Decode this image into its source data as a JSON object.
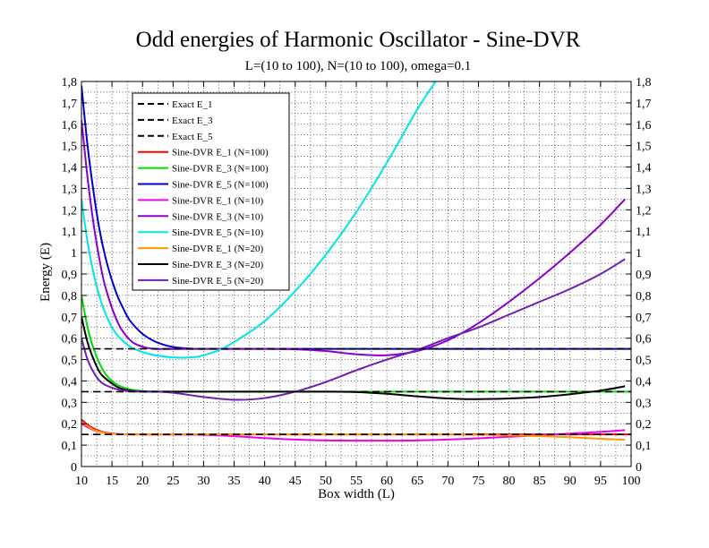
{
  "chart_data": {
    "type": "line",
    "title": "Odd energies of Harmonic Oscillator - Sine-DVR",
    "subtitle": "L=(10 to 100), N=(10 to 100), omega=0.1",
    "xlabel": "Box width (L)",
    "ylabel": "Energy (E)",
    "xlim": [
      10,
      100
    ],
    "ylim": [
      0,
      1.8
    ],
    "x_ticks": [
      10,
      15,
      20,
      25,
      30,
      35,
      40,
      45,
      50,
      55,
      60,
      65,
      70,
      75,
      80,
      85,
      90,
      95,
      100
    ],
    "x_tick_labels": [
      "10",
      "15",
      "20",
      "25",
      "30",
      "35",
      "40",
      "45",
      "50",
      "55",
      "60",
      "65",
      "70",
      "75",
      "80",
      "85",
      "90",
      "95",
      "100"
    ],
    "y_ticks": [
      0,
      0.1,
      0.2,
      0.3,
      0.4,
      0.5,
      0.6,
      0.7,
      0.8,
      0.9,
      1,
      1.1,
      1.2,
      1.3,
      1.4,
      1.5,
      1.6,
      1.7,
      1.8
    ],
    "y_tick_labels": [
      "0",
      "0,1",
      "0,2",
      "0,3",
      "0,4",
      "0,5",
      "0,6",
      "0,7",
      "0,8",
      "0,9",
      "1",
      "1,1",
      "1,2",
      "1,3",
      "1,4",
      "1,5",
      "1,6",
      "1,7",
      "1,8"
    ],
    "grid": "dotted",
    "legend_position": "top-left",
    "series": [
      {
        "name": "Exact E_1",
        "color": "#000000",
        "dash": true,
        "x": [
          10,
          100
        ],
        "y": [
          0.15,
          0.15
        ]
      },
      {
        "name": "Exact E_3",
        "color": "#000000",
        "dash": true,
        "x": [
          10,
          100
        ],
        "y": [
          0.35,
          0.35
        ]
      },
      {
        "name": "Exact E_5",
        "color": "#000000",
        "dash": true,
        "x": [
          10,
          100
        ],
        "y": [
          0.55,
          0.55
        ]
      },
      {
        "name": "Sine-DVR E_1 (N=100)",
        "color": "#ff0000",
        "dash": false,
        "x": [
          10,
          11,
          12,
          13,
          14,
          16,
          20,
          30,
          100
        ],
        "y": [
          0.22,
          0.195,
          0.178,
          0.166,
          0.158,
          0.152,
          0.15,
          0.15,
          0.15
        ]
      },
      {
        "name": "Sine-DVR E_3 (N=100)",
        "color": "#00dd00",
        "dash": false,
        "x": [
          10,
          11,
          12,
          13,
          14,
          15,
          16,
          18,
          20,
          22,
          25,
          100
        ],
        "y": [
          0.8,
          0.65,
          0.55,
          0.48,
          0.43,
          0.4,
          0.38,
          0.36,
          0.353,
          0.35,
          0.35,
          0.35
        ]
      },
      {
        "name": "Sine-DVR E_5 (N=100)",
        "color": "#0000cc",
        "dash": false,
        "x": [
          10,
          11,
          12,
          13,
          14,
          15,
          16,
          17,
          18,
          20,
          22,
          24,
          26,
          28,
          30,
          100
        ],
        "y": [
          1.78,
          1.5,
          1.28,
          1.1,
          0.97,
          0.87,
          0.79,
          0.73,
          0.68,
          0.62,
          0.585,
          0.565,
          0.555,
          0.551,
          0.55,
          0.55
        ]
      },
      {
        "name": "Sine-DVR E_1 (N=10)",
        "color": "#ee00ee",
        "dash": false,
        "x": [
          10,
          12,
          14,
          16,
          20,
          25,
          30,
          35,
          40,
          45,
          50,
          55,
          60,
          65,
          70,
          75,
          80,
          85,
          90,
          95,
          99
        ],
        "y": [
          0.2,
          0.17,
          0.157,
          0.152,
          0.15,
          0.15,
          0.148,
          0.142,
          0.133,
          0.126,
          0.122,
          0.121,
          0.121,
          0.122,
          0.126,
          0.132,
          0.139,
          0.146,
          0.154,
          0.162,
          0.17
        ]
      },
      {
        "name": "Sine-DVR E_3 (N=10)",
        "color": "#8800cc",
        "dash": false,
        "x": [
          10,
          11,
          12,
          13,
          14,
          16,
          18,
          20,
          22,
          25,
          30,
          35,
          40,
          45,
          50,
          55,
          60,
          65,
          70,
          75,
          80,
          85,
          90,
          95,
          99
        ],
        "y": [
          1.62,
          1.35,
          1.13,
          0.96,
          0.83,
          0.67,
          0.59,
          0.56,
          0.55,
          0.55,
          0.55,
          0.55,
          0.55,
          0.548,
          0.54,
          0.525,
          0.52,
          0.54,
          0.59,
          0.67,
          0.77,
          0.88,
          1.0,
          1.13,
          1.25
        ]
      },
      {
        "name": "Sine-DVR E_5 (N=10)",
        "color": "#00e5e5",
        "dash": false,
        "x": [
          10,
          11,
          12,
          13,
          14,
          15,
          16,
          18,
          20,
          22,
          25,
          28,
          30,
          33,
          36,
          40,
          45,
          50,
          55,
          60,
          65,
          68
        ],
        "y": [
          1.25,
          1.05,
          0.9,
          0.79,
          0.71,
          0.65,
          0.61,
          0.56,
          0.535,
          0.52,
          0.51,
          0.51,
          0.52,
          0.55,
          0.6,
          0.68,
          0.82,
          0.99,
          1.19,
          1.42,
          1.67,
          1.8
        ]
      },
      {
        "name": "Sine-DVR E_1 (N=20)",
        "color": "#ff9900",
        "dash": false,
        "x": [
          10,
          12,
          14,
          16,
          20,
          30,
          40,
          50,
          60,
          70,
          75,
          80,
          85,
          90,
          95,
          99
        ],
        "y": [
          0.21,
          0.172,
          0.156,
          0.151,
          0.15,
          0.15,
          0.15,
          0.15,
          0.15,
          0.15,
          0.148,
          0.146,
          0.142,
          0.137,
          0.13,
          0.125
        ]
      },
      {
        "name": "Sine-DVR E_3 (N=20)",
        "color": "#000000",
        "dash": false,
        "x": [
          10,
          11,
          12,
          13,
          14,
          16,
          18,
          20,
          22,
          25,
          30,
          40,
          50,
          55,
          60,
          65,
          70,
          75,
          80,
          85,
          90,
          95,
          99
        ],
        "y": [
          0.7,
          0.58,
          0.5,
          0.44,
          0.41,
          0.37,
          0.355,
          0.351,
          0.35,
          0.35,
          0.35,
          0.35,
          0.35,
          0.348,
          0.34,
          0.328,
          0.318,
          0.315,
          0.318,
          0.325,
          0.338,
          0.355,
          0.375
        ]
      },
      {
        "name": "Sine-DVR E_5 (N=20)",
        "color": "#7020b0",
        "dash": false,
        "x": [
          10,
          11,
          12,
          13,
          14,
          16,
          18,
          20,
          22,
          25,
          30,
          35,
          40,
          45,
          50,
          55,
          60,
          65,
          70,
          75,
          80,
          85,
          90,
          95,
          99
        ],
        "y": [
          0.6,
          0.5,
          0.44,
          0.4,
          0.38,
          0.36,
          0.352,
          0.35,
          0.35,
          0.345,
          0.325,
          0.312,
          0.32,
          0.35,
          0.395,
          0.45,
          0.5,
          0.545,
          0.6,
          0.65,
          0.71,
          0.77,
          0.83,
          0.9,
          0.97
        ]
      }
    ]
  }
}
